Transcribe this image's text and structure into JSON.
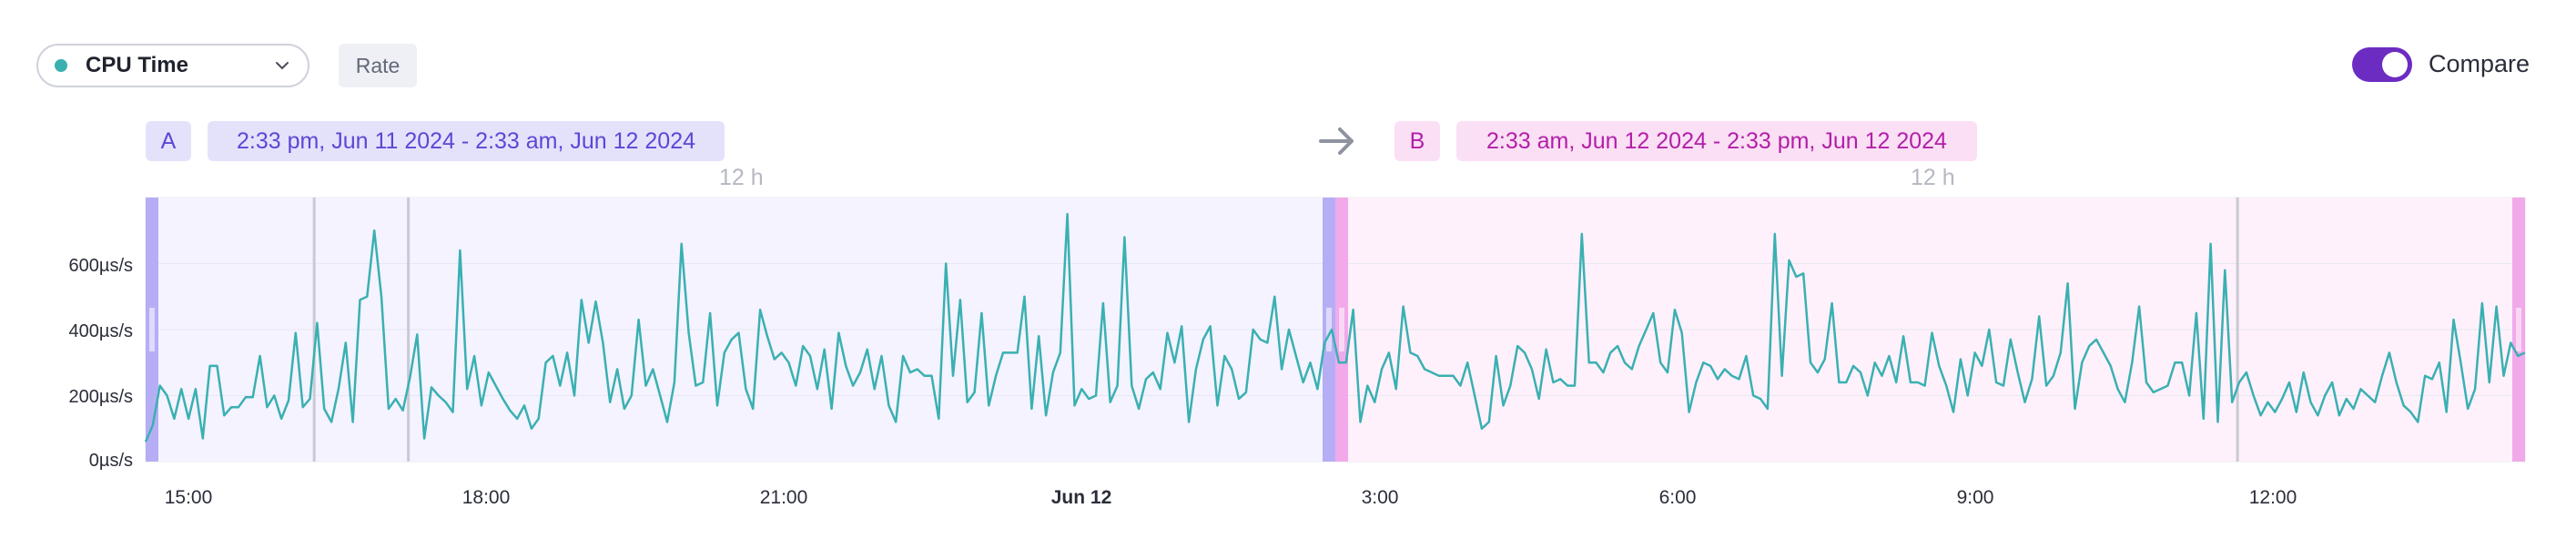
{
  "toolbar": {
    "metric": {
      "label": "CPU Time",
      "dot_color": "#3aafb0",
      "icon": "chevron-down-icon"
    },
    "rate_label": "Rate",
    "compare": {
      "label": "Compare",
      "enabled": true
    }
  },
  "ranges": {
    "a": {
      "letter": "A",
      "text": "2:33 pm, Jun 11 2024 - 2:33 am, Jun 12 2024",
      "duration": "12 h",
      "color": "#5b47d6"
    },
    "b": {
      "letter": "B",
      "text": "2:33 am, Jun 12 2024 - 2:33 pm, Jun 12 2024",
      "duration": "12 h",
      "color": "#b21fa9"
    },
    "arrow_icon": "arrow-right-icon"
  },
  "chart_data": {
    "type": "line",
    "series_color": "#3ab0b2",
    "y_ticks": [
      "0µs/s",
      "200µs/s",
      "400µs/s",
      "600µs/s"
    ],
    "ylim": [
      0,
      800
    ],
    "x_ticks": [
      "15:00",
      "18:00",
      "21:00",
      "Jun 12",
      "3:00",
      "6:00",
      "9:00",
      "12:00"
    ],
    "x_tick_hours": [
      0.45,
      3.45,
      6.45,
      9.45,
      12.45,
      15.45,
      18.45,
      21.45
    ],
    "xlim_hours": [
      0.25,
      24.25
    ],
    "range_a_hours": [
      0.25,
      12.25
    ],
    "range_b_hours": [
      12.25,
      24.25
    ],
    "markers_hours": [
      1.95,
      2.9,
      21.35
    ],
    "values": [
      60,
      110,
      230,
      200,
      130,
      220,
      130,
      220,
      70,
      290,
      290,
      140,
      165,
      165,
      195,
      195,
      320,
      165,
      200,
      130,
      185,
      390,
      165,
      190,
      420,
      160,
      120,
      220,
      360,
      120,
      490,
      500,
      700,
      500,
      160,
      190,
      155,
      255,
      385,
      70,
      225,
      200,
      180,
      150,
      640,
      220,
      320,
      170,
      270,
      230,
      190,
      155,
      130,
      170,
      100,
      130,
      300,
      320,
      230,
      330,
      200,
      490,
      360,
      485,
      360,
      180,
      280,
      160,
      200,
      430,
      230,
      280,
      200,
      120,
      240,
      660,
      390,
      230,
      240,
      450,
      170,
      330,
      370,
      390,
      220,
      160,
      460,
      380,
      310,
      330,
      300,
      230,
      350,
      320,
      220,
      340,
      160,
      390,
      290,
      230,
      270,
      340,
      220,
      320,
      170,
      120,
      320,
      270,
      280,
      260,
      260,
      130,
      600,
      260,
      490,
      180,
      210,
      450,
      170,
      260,
      330,
      330,
      330,
      500,
      160,
      380,
      140,
      270,
      330,
      750,
      170,
      220,
      190,
      200,
      480,
      180,
      230,
      680,
      230,
      160,
      250,
      270,
      220,
      390,
      300,
      410,
      120,
      280,
      370,
      410,
      170,
      320,
      280,
      190,
      210,
      400,
      370,
      360,
      500,
      280,
      400,
      320,
      240,
      300,
      220,
      360,
      400,
      300,
      300,
      460,
      120,
      230,
      180,
      280,
      330,
      220,
      470,
      330,
      320,
      280,
      270,
      260,
      260,
      260,
      230,
      300,
      200,
      100,
      120,
      320,
      170,
      230,
      350,
      330,
      280,
      190,
      340,
      240,
      250,
      230,
      230,
      690,
      300,
      300,
      270,
      330,
      350,
      300,
      280,
      350,
      400,
      450,
      300,
      270,
      460,
      390,
      150,
      240,
      300,
      290,
      250,
      280,
      260,
      250,
      320,
      200,
      190,
      160,
      690,
      260,
      610,
      560,
      570,
      300,
      270,
      310,
      480,
      240,
      240,
      290,
      270,
      200,
      300,
      260,
      320,
      240,
      380,
      240,
      240,
      230,
      390,
      290,
      230,
      150,
      310,
      200,
      330,
      290,
      400,
      240,
      230,
      370,
      270,
      180,
      250,
      440,
      230,
      260,
      330,
      540,
      160,
      300,
      350,
      370,
      330,
      290,
      220,
      180,
      300,
      470,
      240,
      210,
      220,
      230,
      300,
      300,
      200,
      450,
      130,
      660,
      120,
      580,
      180,
      240,
      270,
      200,
      140,
      180,
      150,
      190,
      240,
      150,
      270,
      180,
      140,
      200,
      240,
      140,
      190,
      160,
      220,
      200,
      180,
      260,
      330,
      240,
      170,
      150,
      120,
      260,
      250,
      300,
      150,
      430,
      300,
      160,
      220,
      480,
      240,
      470,
      260,
      360,
      320,
      330
    ]
  }
}
